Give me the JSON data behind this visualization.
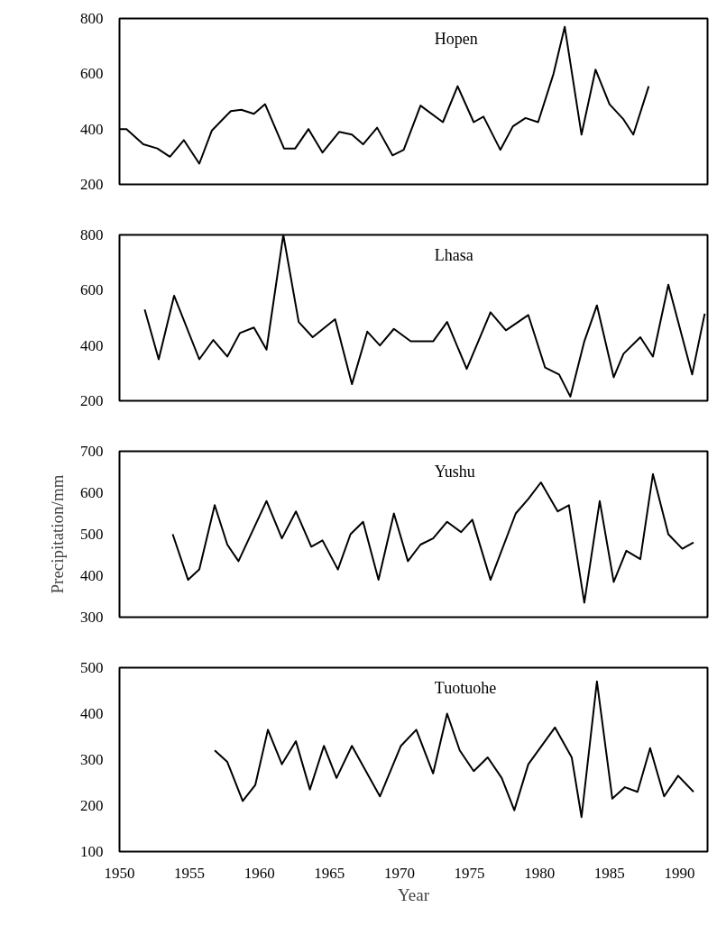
{
  "chart_data": [
    {
      "type": "line",
      "title": "Hopen",
      "color": "#000000",
      "xlim": [
        1950,
        1992
      ],
      "ylim": [
        200,
        800
      ],
      "yticks": [
        200,
        400,
        600,
        800
      ],
      "tick_labels": "y",
      "x": [
        1950,
        1950.5,
        1951.7,
        1952.7,
        1953.6,
        1954.6,
        1955.7,
        1956.6,
        1957.95,
        1958.7,
        1959.6,
        1960.4,
        1961.75,
        1962.55,
        1963.5,
        1964.5,
        1965.7,
        1966.6,
        1967.4,
        1968.4,
        1969.5,
        1970.3,
        1971.5,
        1973.1,
        1974.15,
        1975.3,
        1976,
        1977.2,
        1978.1,
        1979,
        1979.9,
        1981,
        1981.8,
        1983,
        1984,
        1985,
        1986,
        1986.7,
        1987.8
      ],
      "values": [
        400,
        400,
        345,
        330,
        300,
        360,
        275,
        395,
        465,
        470,
        455,
        490,
        330,
        330,
        400,
        315,
        390,
        380,
        345,
        405,
        305,
        325,
        485,
        425,
        555,
        425,
        445,
        325,
        410,
        440,
        425,
        600,
        770,
        380,
        615,
        490,
        435,
        380,
        555
      ]
    },
    {
      "type": "line",
      "title": "Lhasa",
      "color": "#000000",
      "xlim": [
        1950,
        1992
      ],
      "ylim": [
        200,
        800
      ],
      "yticks": [
        200,
        400,
        600,
        800
      ],
      "tick_labels": "y",
      "x": [
        1951.8,
        1952.8,
        1953.9,
        1955.7,
        1956.7,
        1957.7,
        1958.6,
        1959.6,
        1960.5,
        1961.7,
        1962.8,
        1963.8,
        1965.4,
        1966.6,
        1967.7,
        1968.6,
        1969.6,
        1970.8,
        1972.4,
        1973.4,
        1974.8,
        1976.5,
        1977.6,
        1979.2,
        1980.4,
        1981.4,
        1982.2,
        1983.2,
        1984.1,
        1985.3,
        1986,
        1987.2,
        1988.1,
        1989.2,
        1990.9,
        1991.8
      ],
      "values": [
        530,
        350,
        580,
        350,
        420,
        360,
        445,
        465,
        385,
        800,
        485,
        430,
        495,
        260,
        450,
        400,
        460,
        415,
        415,
        485,
        315,
        520,
        455,
        510,
        320,
        295,
        215,
        415,
        545,
        285,
        370,
        430,
        360,
        620,
        295,
        515
      ]
    },
    {
      "type": "line",
      "title": "Yushu",
      "ylabel": "Precipitation/mm",
      "color": "#000000",
      "xlim": [
        1950,
        1992
      ],
      "ylim": [
        300,
        700
      ],
      "yticks": [
        300,
        400,
        500,
        600,
        700
      ],
      "tick_labels": "y",
      "x": [
        1953.8,
        1954.9,
        1955.7,
        1956.8,
        1957.7,
        1958.5,
        1960.5,
        1961.6,
        1962.6,
        1963.7,
        1964.5,
        1965.6,
        1966.5,
        1967.4,
        1968.5,
        1969.6,
        1970.6,
        1971.5,
        1972.4,
        1973.4,
        1974.4,
        1975.2,
        1976.5,
        1978.3,
        1979.2,
        1980.1,
        1981.3,
        1982.1,
        1983.2,
        1984.3,
        1985.3,
        1986.2,
        1987.2,
        1988.1,
        1989.2,
        1990.2,
        1991
      ],
      "values": [
        500,
        390,
        415,
        570,
        475,
        435,
        580,
        490,
        555,
        470,
        485,
        415,
        500,
        530,
        390,
        550,
        435,
        475,
        490,
        530,
        505,
        535,
        390,
        550,
        585,
        625,
        555,
        570,
        335,
        580,
        385,
        460,
        440,
        645,
        500,
        465,
        480
      ]
    },
    {
      "type": "line",
      "title": "Tuotuohe",
      "xlabel": "Year",
      "color": "#000000",
      "xlim": [
        1950,
        1992
      ],
      "ylim": [
        100,
        500
      ],
      "yticks": [
        100,
        200,
        300,
        400,
        500
      ],
      "xticks": [
        1950,
        1955,
        1960,
        1965,
        1970,
        1975,
        1980,
        1985,
        1990
      ],
      "x": [
        1956.8,
        1957.7,
        1958.8,
        1959.7,
        1960.6,
        1961.6,
        1962.6,
        1963.6,
        1964.6,
        1965.5,
        1966.6,
        1968.6,
        1970.1,
        1971.2,
        1972.4,
        1973.4,
        1974.3,
        1975.3,
        1976.3,
        1977.3,
        1978.2,
        1979.2,
        1981.1,
        1982.3,
        1983,
        1984.1,
        1985.2,
        1986.1,
        1987,
        1987.9,
        1988.9,
        1989.9,
        1991
      ],
      "values": [
        320,
        295,
        210,
        245,
        365,
        290,
        340,
        235,
        330,
        260,
        330,
        220,
        330,
        365,
        270,
        400,
        320,
        275,
        305,
        260,
        190,
        290,
        370,
        305,
        175,
        470,
        215,
        240,
        230,
        325,
        220,
        265,
        230
      ]
    }
  ]
}
